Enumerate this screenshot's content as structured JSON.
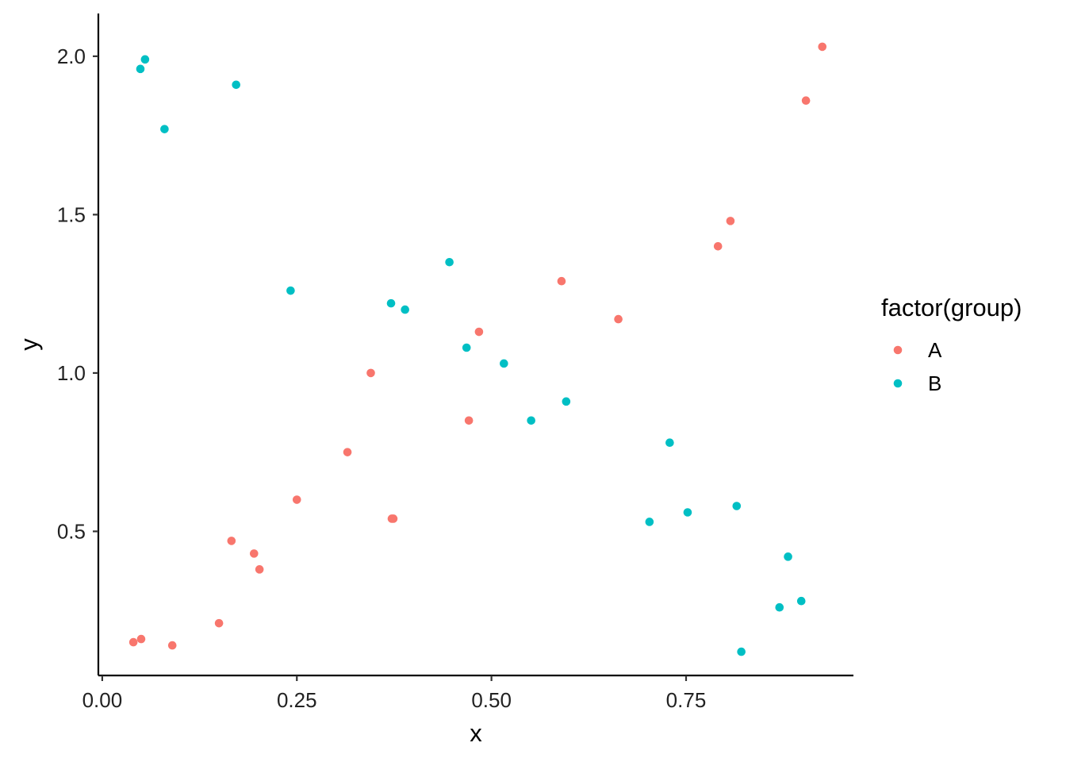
{
  "chart_data": {
    "type": "scatter",
    "title": "",
    "xlabel": "x",
    "ylabel": "y",
    "xlim": [
      -0.005,
      0.965
    ],
    "ylim": [
      0.045,
      2.135
    ],
    "x_ticks": [
      {
        "value": 0.0,
        "label": "0.00"
      },
      {
        "value": 0.25,
        "label": "0.25"
      },
      {
        "value": 0.5,
        "label": "0.50"
      },
      {
        "value": 0.75,
        "label": "0.75"
      }
    ],
    "y_ticks": [
      {
        "value": 0.5,
        "label": "0.5"
      },
      {
        "value": 1.0,
        "label": "1.0"
      },
      {
        "value": 1.5,
        "label": "1.5"
      },
      {
        "value": 2.0,
        "label": "2.0"
      }
    ],
    "grid": false,
    "legend": {
      "title": "factor(group)",
      "position": "right"
    },
    "series": [
      {
        "name": "A",
        "color": "#F8766D",
        "points": [
          [
            0.04,
            0.15
          ],
          [
            0.05,
            0.16
          ],
          [
            0.09,
            0.14
          ],
          [
            0.15,
            0.21
          ],
          [
            0.166,
            0.47
          ],
          [
            0.195,
            0.43
          ],
          [
            0.202,
            0.38
          ],
          [
            0.25,
            0.6
          ],
          [
            0.315,
            0.75
          ],
          [
            0.345,
            1.0
          ],
          [
            0.372,
            0.54
          ],
          [
            0.374,
            0.54
          ],
          [
            0.471,
            0.85
          ],
          [
            0.484,
            1.13
          ],
          [
            0.59,
            1.29
          ],
          [
            0.663,
            1.17
          ],
          [
            0.791,
            1.4
          ],
          [
            0.807,
            1.48
          ],
          [
            0.904,
            1.86
          ],
          [
            0.925,
            2.03
          ]
        ]
      },
      {
        "name": "B",
        "color": "#00BFC4",
        "points": [
          [
            0.049,
            1.96
          ],
          [
            0.055,
            1.99
          ],
          [
            0.08,
            1.77
          ],
          [
            0.172,
            1.91
          ],
          [
            0.242,
            1.26
          ],
          [
            0.371,
            1.22
          ],
          [
            0.389,
            1.2
          ],
          [
            0.446,
            1.35
          ],
          [
            0.468,
            1.08
          ],
          [
            0.516,
            1.03
          ],
          [
            0.551,
            0.85
          ],
          [
            0.596,
            0.91
          ],
          [
            0.703,
            0.53
          ],
          [
            0.729,
            0.78
          ],
          [
            0.752,
            0.56
          ],
          [
            0.815,
            0.58
          ],
          [
            0.821,
            0.12
          ],
          [
            0.87,
            0.26
          ],
          [
            0.881,
            0.42
          ],
          [
            0.898,
            0.28
          ]
        ]
      }
    ]
  }
}
